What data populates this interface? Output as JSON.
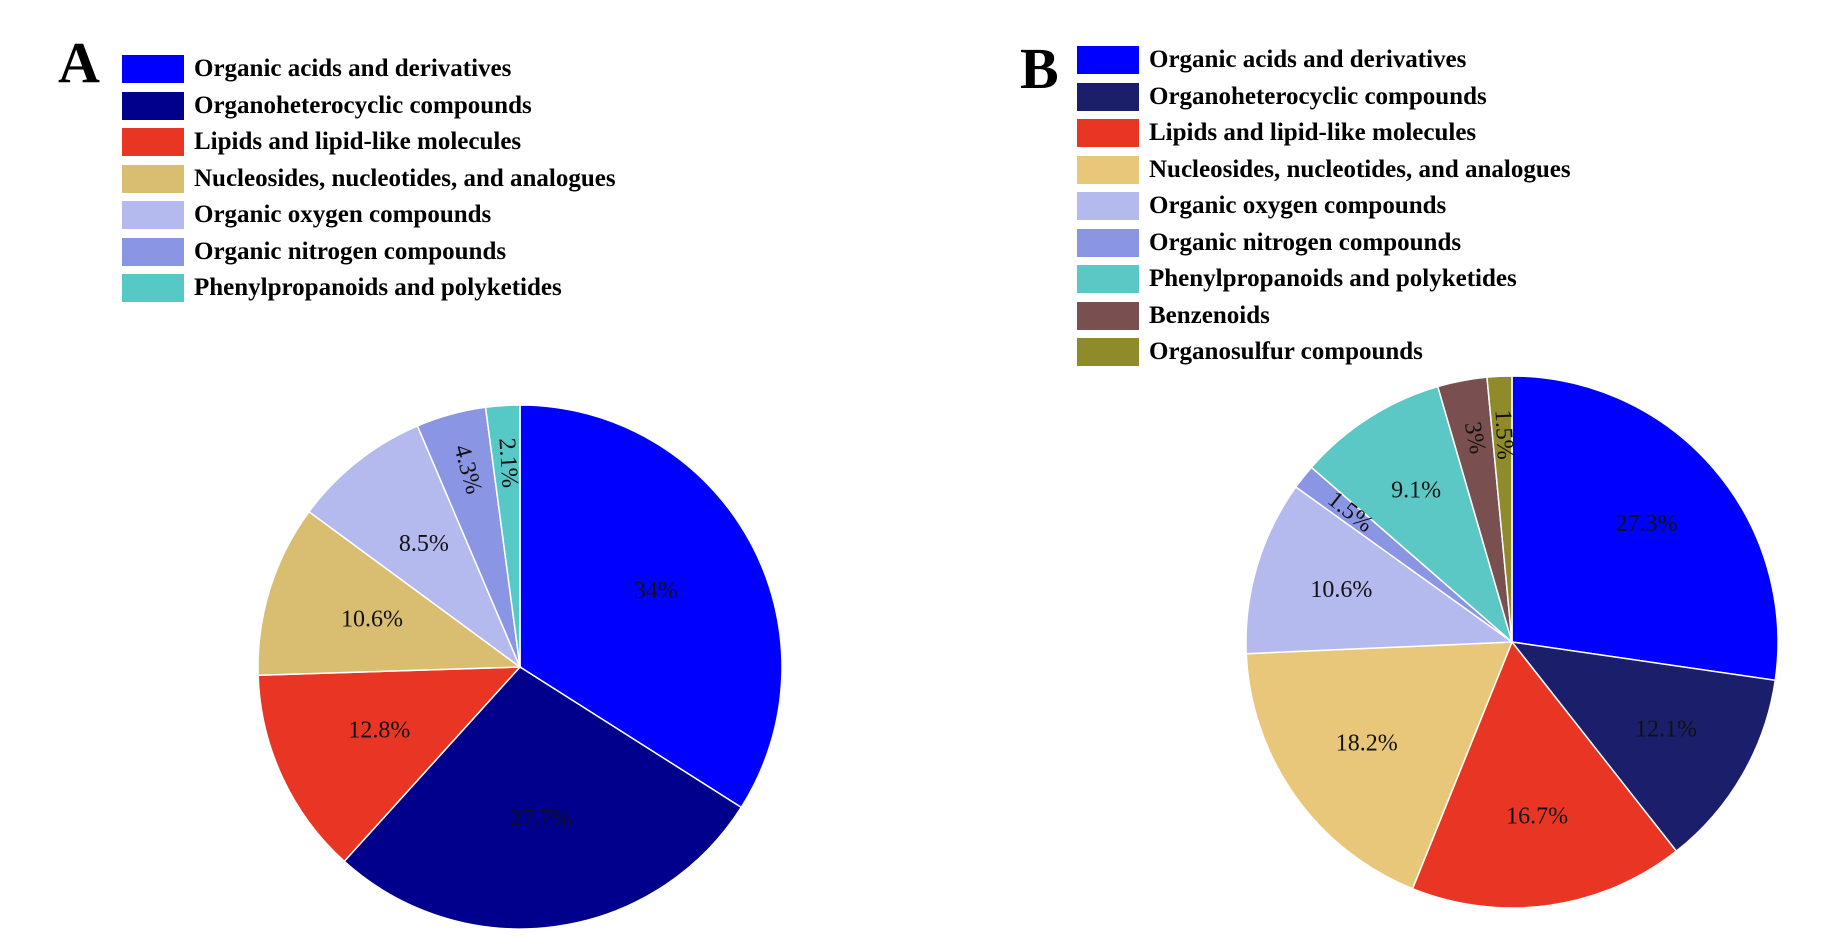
{
  "chart_data": [
    {
      "type": "pie",
      "panel_label": "A",
      "legend_position": "top-left",
      "slices": [
        {
          "label": "Organic acids and derivatives",
          "value": 34,
          "value_label": "34%",
          "color": "#0000fe"
        },
        {
          "label": "Organoheterocyclic compounds",
          "value": 27.7,
          "value_label": "27.7%",
          "color": "#00008c"
        },
        {
          "label": "Lipids and lipid-like molecules",
          "value": 12.8,
          "value_label": "12.8%",
          "color": "#e83524"
        },
        {
          "label": "Nucleosides, nucleotides, and analogues",
          "value": 10.6,
          "value_label": "10.6%",
          "color": "#d9be72"
        },
        {
          "label": "Organic oxygen compounds",
          "value": 8.5,
          "value_label": "8.5%",
          "color": "#b4b9ee"
        },
        {
          "label": "Organic nitrogen compounds",
          "value": 4.3,
          "value_label": "4.3%",
          "color": "#8a96e4"
        },
        {
          "label": "Phenylpropanoids and polyketides",
          "value": 2.1,
          "value_label": "2.1%",
          "color": "#56c8c6"
        }
      ]
    },
    {
      "type": "pie",
      "panel_label": "B",
      "legend_position": "top-left",
      "slices": [
        {
          "label": "Organic acids and derivatives",
          "value": 27.3,
          "value_label": "27.3%",
          "color": "#0000fe"
        },
        {
          "label": "Organoheterocyclic compounds",
          "value": 12.1,
          "value_label": "12.1%",
          "color": "#1b1f6b"
        },
        {
          "label": "Lipids and lipid-like molecules",
          "value": 16.7,
          "value_label": "16.7%",
          "color": "#e83524"
        },
        {
          "label": "Nucleosides, nucleotides, and analogues",
          "value": 18.2,
          "value_label": "18.2%",
          "color": "#e8c77a"
        },
        {
          "label": "Organic oxygen compounds",
          "value": 10.6,
          "value_label": "10.6%",
          "color": "#b4b9ee"
        },
        {
          "label": "Organic nitrogen compounds",
          "value": 1.5,
          "value_label": "1.5%",
          "color": "#8a96e4"
        },
        {
          "label": "Phenylpropanoids and polyketides",
          "value": 9.1,
          "value_label": "9.1%",
          "color": "#5cc8c6"
        },
        {
          "label": "Benzenoids",
          "value": 3,
          "value_label": "3%",
          "color": "#7a4f4f"
        },
        {
          "label": "Organosulfur compounds",
          "value": 1.5,
          "value_label": "1.5%",
          "color": "#8f8a2a"
        }
      ]
    }
  ]
}
